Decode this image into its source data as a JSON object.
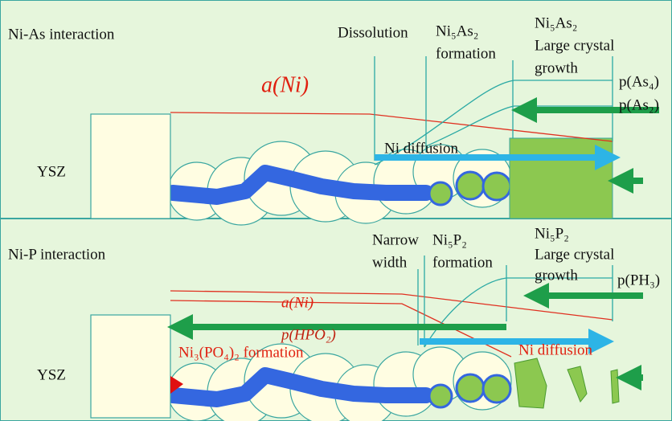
{
  "top": {
    "title": "Ni-As interaction",
    "ysz": "YSZ",
    "dissolution": "Dissolution",
    "formation": [
      "Ni₅As₂",
      "formation"
    ],
    "growth": [
      "Ni₅As₂",
      "Large crystal",
      "growth"
    ],
    "activity": "a(Ni)",
    "pressure_1": "p(As₄)",
    "pressure_2": "p(As₂)",
    "diffusion": "Ni diffusion"
  },
  "bottom": {
    "title": "Ni-P interaction",
    "ysz": "YSZ",
    "narrow": [
      "Narrow",
      "width"
    ],
    "formation": [
      "Ni₅P₂",
      "formation"
    ],
    "growth": [
      "Ni₅P₂",
      "Large crystal",
      "growth"
    ],
    "activity": "a(Ni)",
    "pressure_hpo2": "p(HPO₂)",
    "pressure_ph3": "p(PH₃)",
    "phosphate": "Ni₃(PO₄)₂ formation",
    "diffusion": "Ni diffusion"
  }
}
